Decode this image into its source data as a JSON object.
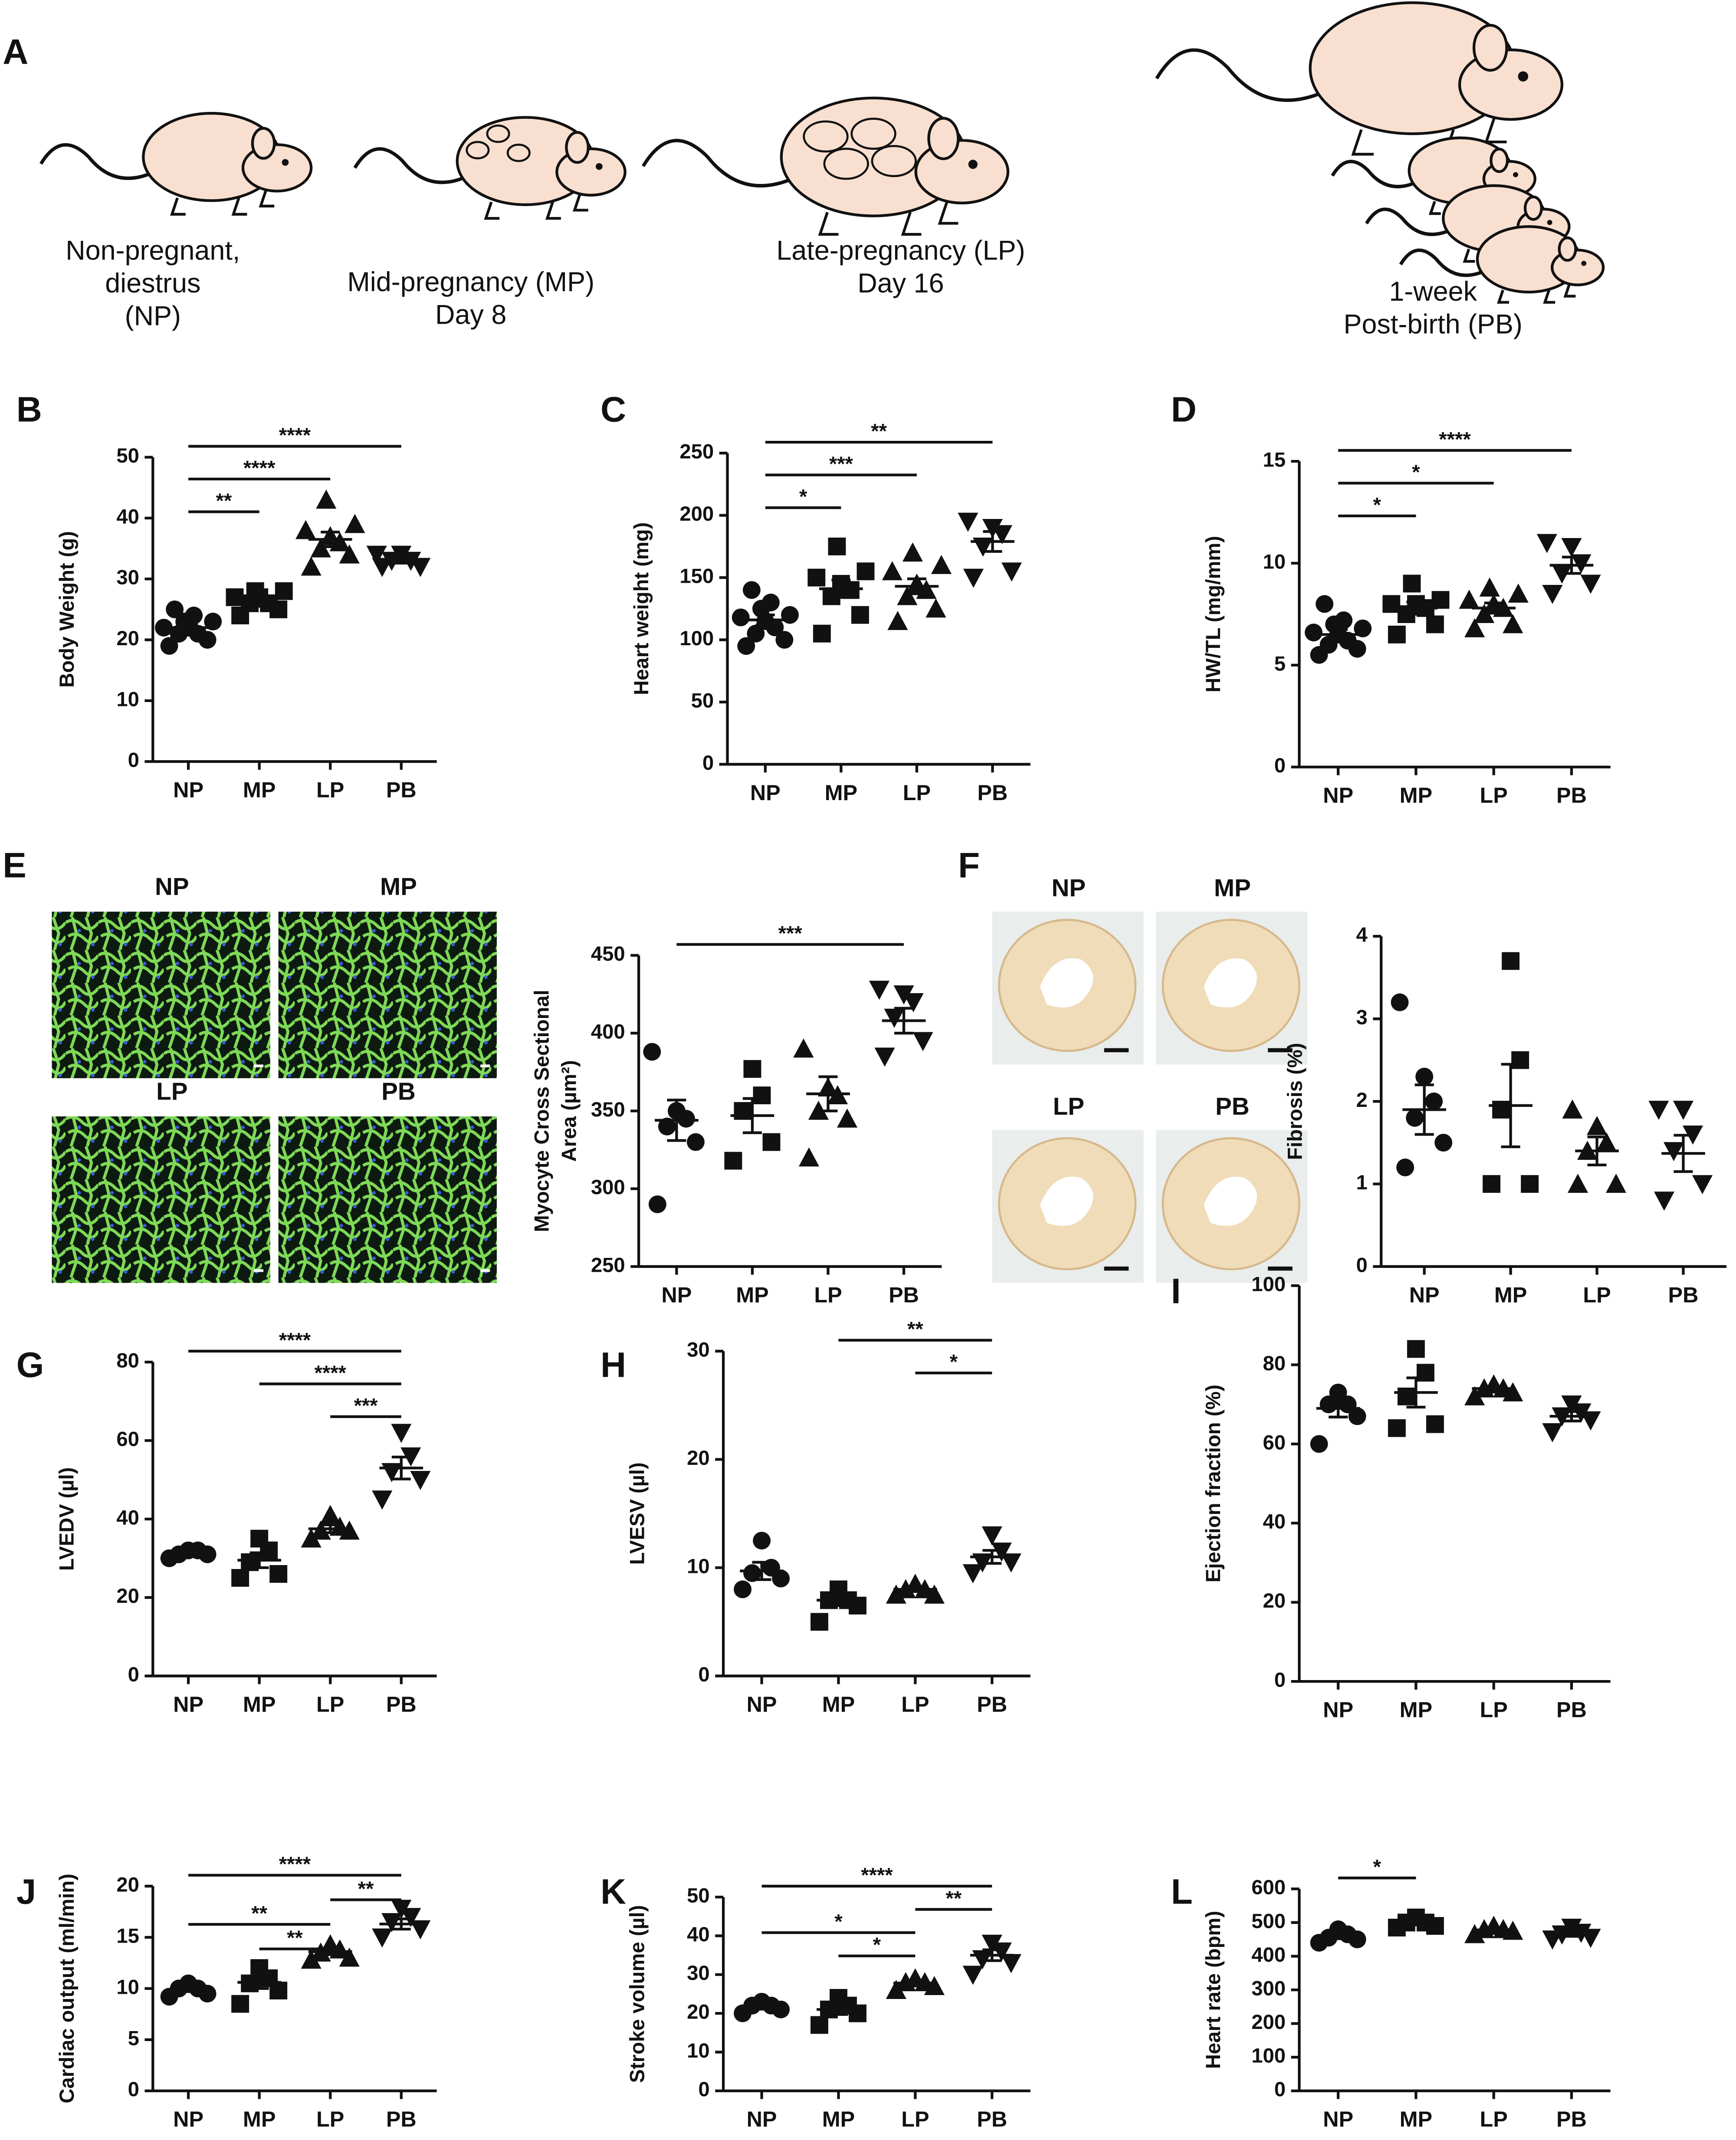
{
  "panel_a": {
    "panel": "A",
    "stages": [
      {
        "lines": [
          "Non-pregnant,",
          "diestrus",
          "(NP)"
        ]
      },
      {
        "lines": [
          "Mid-pregnancy (MP)",
          "Day 8"
        ]
      },
      {
        "lines": [
          "Late-pregnancy (LP)",
          "Day 16"
        ]
      },
      {
        "lines": [
          "1-week",
          "Post-birth (PB)"
        ]
      }
    ]
  },
  "panel_e_images": {
    "panel": "E",
    "labels": [
      "NP",
      "MP",
      "LP",
      "PB"
    ]
  },
  "panel_f_images": {
    "panel": "F",
    "labels": [
      "NP",
      "MP",
      "LP",
      "PB"
    ]
  },
  "chart_data": [
    {
      "type": "dot",
      "panel": "B",
      "ylabel": "Body Weight (g)",
      "categories": [
        "NP",
        "MP",
        "LP",
        "PB"
      ],
      "markers": [
        "circle",
        "square",
        "triangle",
        "triangle-down"
      ],
      "color": "#111111",
      "points": [
        [
          19,
          20,
          21,
          21,
          22,
          22,
          23,
          23,
          24,
          25
        ],
        [
          24,
          25,
          26,
          26,
          27,
          27,
          28,
          28
        ],
        [
          32,
          34,
          35,
          36,
          37,
          38,
          39,
          43
        ],
        [
          32,
          32,
          33,
          33,
          34,
          34
        ]
      ],
      "means": [
        22,
        26,
        36.5,
        33
      ],
      "sems": [
        0.6,
        0.5,
        1.2,
        0.4
      ],
      "ylim": [
        0,
        50
      ],
      "yticks": [
        0,
        10,
        20,
        30,
        40,
        50
      ],
      "significance": [
        {
          "pair": [
            "NP",
            "PB"
          ],
          "label": "****"
        },
        {
          "pair": [
            "NP",
            "LP"
          ],
          "label": "****"
        },
        {
          "pair": [
            "NP",
            "MP"
          ],
          "label": "**"
        }
      ]
    },
    {
      "type": "dot",
      "panel": "C",
      "ylabel": "Heart weight (mg)",
      "categories": [
        "NP",
        "MP",
        "LP",
        "PB"
      ],
      "markers": [
        "circle",
        "square",
        "triangle",
        "triangle-down"
      ],
      "color": "#111111",
      "points": [
        [
          95,
          100,
          105,
          110,
          115,
          118,
          120,
          125,
          130,
          140
        ],
        [
          105,
          120,
          135,
          140,
          145,
          150,
          155,
          175
        ],
        [
          115,
          125,
          135,
          140,
          145,
          155,
          160,
          170
        ],
        [
          150,
          155,
          175,
          185,
          190,
          195
        ]
      ],
      "means": [
        116,
        141,
        143,
        179
      ],
      "sems": [
        4,
        7,
        6,
        8
      ],
      "ylim": [
        0,
        250
      ],
      "yticks": [
        0,
        50,
        100,
        150,
        200,
        250
      ],
      "significance": [
        {
          "pair": [
            "NP",
            "PB"
          ],
          "label": "**"
        },
        {
          "pair": [
            "NP",
            "LP"
          ],
          "label": "***"
        },
        {
          "pair": [
            "NP",
            "MP"
          ],
          "label": "*"
        }
      ]
    },
    {
      "type": "dot",
      "panel": "D",
      "ylabel": "HW/TL (mg/mm)",
      "categories": [
        "NP",
        "MP",
        "LP",
        "PB"
      ],
      "markers": [
        "circle",
        "square",
        "triangle",
        "triangle-down"
      ],
      "color": "#111111",
      "points": [
        [
          5.5,
          5.8,
          6,
          6.2,
          6.5,
          6.6,
          6.8,
          7,
          7.2,
          8
        ],
        [
          6.5,
          7,
          7.5,
          7.8,
          8,
          8,
          8.2,
          9
        ],
        [
          6.8,
          7,
          7.5,
          7.8,
          8,
          8.2,
          8.5,
          8.8
        ],
        [
          8.5,
          9,
          9.5,
          10,
          10.8,
          11
        ]
      ],
      "means": [
        6.5,
        7.8,
        7.8,
        9.9
      ],
      "sems": [
        0.25,
        0.3,
        0.25,
        0.4
      ],
      "ylim": [
        0,
        15
      ],
      "yticks": [
        0,
        5,
        10,
        15
      ],
      "significance": [
        {
          "pair": [
            "NP",
            "PB"
          ],
          "label": "****"
        },
        {
          "pair": [
            "NP",
            "LP"
          ],
          "label": "*"
        },
        {
          "pair": [
            "NP",
            "MP"
          ],
          "label": "*"
        }
      ]
    },
    {
      "type": "dot",
      "ylabel": [
        "Myocyte Cross Sectional",
        "Area (µm²)"
      ],
      "categories": [
        "NP",
        "MP",
        "LP",
        "PB"
      ],
      "markers": [
        "circle",
        "square",
        "triangle",
        "triangle-down"
      ],
      "color": "#111111",
      "points": [
        [
          290,
          330,
          340,
          345,
          350,
          388
        ],
        [
          318,
          330,
          350,
          360,
          377
        ],
        [
          320,
          345,
          350,
          360,
          365,
          390
        ],
        [
          385,
          395,
          410,
          420,
          425,
          428
        ]
      ],
      "means": [
        344,
        347,
        361,
        408
      ],
      "sems": [
        13,
        11,
        11,
        8
      ],
      "ylim": [
        250,
        450
      ],
      "yticks": [
        250,
        300,
        350,
        400,
        450
      ],
      "significance": [
        {
          "pair": [
            "NP",
            "PB"
          ],
          "label": "***"
        }
      ]
    },
    {
      "type": "dot",
      "ylabel": "Fibrosis (%)",
      "categories": [
        "NP",
        "MP",
        "LP",
        "PB"
      ],
      "markers": [
        "circle",
        "square",
        "triangle",
        "triangle-down"
      ],
      "color": "#111111",
      "points": [
        [
          1.2,
          1.5,
          1.8,
          2,
          2.3,
          3.2
        ],
        [
          1,
          1,
          1.9,
          2.5,
          3.7
        ],
        [
          1,
          1,
          1.4,
          1.5,
          1.7,
          1.9
        ],
        [
          0.8,
          1,
          1.4,
          1.6,
          1.9,
          1.9
        ]
      ],
      "means": [
        1.9,
        1.95,
        1.4,
        1.37
      ],
      "sems": [
        0.3,
        0.5,
        0.17,
        0.22
      ],
      "ylim": [
        0,
        4
      ],
      "yticks": [
        0,
        1,
        2,
        3,
        4
      ],
      "significance": []
    },
    {
      "type": "dot",
      "panel": "G",
      "ylabel": "LVEDV  (µl)",
      "categories": [
        "NP",
        "MP",
        "LP",
        "PB"
      ],
      "markers": [
        "circle",
        "square",
        "triangle",
        "triangle-down"
      ],
      "color": "#111111",
      "points": [
        [
          30,
          31,
          31,
          32,
          32
        ],
        [
          25,
          26,
          29,
          32,
          35
        ],
        [
          35,
          37,
          37,
          38,
          41
        ],
        [
          45,
          50,
          52,
          56,
          62
        ]
      ],
      "means": [
        31,
        29.5,
        37.5,
        53
      ],
      "sems": [
        0.4,
        1.9,
        1,
        2.8
      ],
      "ylim": [
        0,
        80
      ],
      "yticks": [
        0,
        20,
        40,
        60,
        80
      ],
      "significance": [
        {
          "pair": [
            "NP",
            "PB"
          ],
          "label": "****"
        },
        {
          "pair": [
            "MP",
            "PB"
          ],
          "label": "****"
        },
        {
          "pair": [
            "LP",
            "PB"
          ],
          "label": "***"
        }
      ]
    },
    {
      "type": "dot",
      "panel": "H",
      "ylabel": "LVESV (µl)",
      "categories": [
        "NP",
        "MP",
        "LP",
        "PB"
      ],
      "markers": [
        "circle",
        "square",
        "triangle",
        "triangle-down"
      ],
      "color": "#111111",
      "points": [
        [
          8,
          9,
          9.5,
          10,
          12.5
        ],
        [
          5,
          6.5,
          7,
          7,
          8
        ],
        [
          7.5,
          7.5,
          8,
          8,
          8.5
        ],
        [
          9.5,
          10.5,
          10.5,
          11.5,
          13
        ]
      ],
      "means": [
        9.7,
        7,
        8,
        11
      ],
      "sems": [
        0.8,
        0.5,
        0.2,
        0.6
      ],
      "ylim": [
        0,
        30
      ],
      "yticks": [
        0,
        10,
        20,
        30
      ],
      "significance": [
        {
          "pair": [
            "MP",
            "PB"
          ],
          "label": "**"
        },
        {
          "pair": [
            "LP",
            "PB"
          ],
          "label": "*"
        }
      ]
    },
    {
      "type": "dot",
      "panel": "I",
      "ylabel": "Ejection fraction (%)",
      "categories": [
        "NP",
        "MP",
        "LP",
        "PB"
      ],
      "markers": [
        "circle",
        "square",
        "triangle",
        "triangle-down"
      ],
      "color": "#111111",
      "points": [
        [
          60,
          67,
          70,
          70,
          73
        ],
        [
          64,
          65,
          72,
          78,
          84
        ],
        [
          72,
          73,
          74,
          74,
          75
        ],
        [
          63,
          66,
          67,
          68,
          70
        ]
      ],
      "means": [
        69,
        73,
        74,
        67
      ],
      "sems": [
        2.2,
        3.7,
        0.5,
        1.2
      ],
      "ylim": [
        0,
        100
      ],
      "yticks": [
        0,
        20,
        40,
        60,
        80,
        100
      ],
      "significance": []
    },
    {
      "type": "dot",
      "panel": "J",
      "ylabel": "Cardiac output (ml/min)",
      "categories": [
        "NP",
        "MP",
        "LP",
        "PB"
      ],
      "markers": [
        "circle",
        "square",
        "triangle",
        "triangle-down"
      ],
      "color": "#111111",
      "points": [
        [
          9.2,
          9.5,
          10,
          10,
          10.5
        ],
        [
          8.5,
          9.8,
          10.5,
          11,
          12
        ],
        [
          12.8,
          13,
          13.5,
          13.8,
          14.3
        ],
        [
          15,
          15.8,
          16.5,
          17,
          17.8
        ]
      ],
      "means": [
        9.9,
        10.6,
        13.6,
        16.3
      ],
      "sems": [
        0.2,
        0.6,
        0.3,
        0.5
      ],
      "ylim": [
        0,
        20
      ],
      "yticks": [
        0,
        5,
        10,
        15,
        20
      ],
      "significance": [
        {
          "pair": [
            "NP",
            "PB"
          ],
          "label": "****"
        },
        {
          "pair": [
            "LP",
            "PB"
          ],
          "label": "**"
        },
        {
          "pair": [
            "NP",
            "LP"
          ],
          "label": "**"
        },
        {
          "pair": [
            "MP",
            "LP"
          ],
          "label": "**"
        }
      ]
    },
    {
      "type": "dot",
      "panel": "K",
      "ylabel": "Stroke volume (µl)",
      "categories": [
        "NP",
        "MP",
        "LP",
        "PB"
      ],
      "markers": [
        "circle",
        "square",
        "triangle",
        "triangle-down"
      ],
      "color": "#111111",
      "points": [
        [
          20,
          21,
          22,
          22,
          23
        ],
        [
          17,
          20,
          21,
          22,
          24
        ],
        [
          26,
          27,
          28,
          28,
          29
        ],
        [
          30,
          33,
          34,
          36,
          38
        ]
      ],
      "means": [
        21.8,
        21,
        27.8,
        35
      ],
      "sems": [
        0.6,
        1.3,
        0.6,
        1.4
      ],
      "ylim": [
        0,
        50
      ],
      "yticks": [
        0,
        10,
        20,
        30,
        40,
        50
      ],
      "significance": [
        {
          "pair": [
            "NP",
            "PB"
          ],
          "label": "****"
        },
        {
          "pair": [
            "LP",
            "PB"
          ],
          "label": "**"
        },
        {
          "pair": [
            "NP",
            "LP"
          ],
          "label": "*"
        },
        {
          "pair": [
            "MP",
            "LP"
          ],
          "label": "*"
        }
      ]
    },
    {
      "type": "dot",
      "panel": "L",
      "ylabel": "Heart rate (bpm)",
      "categories": [
        "NP",
        "MP",
        "LP",
        "PB"
      ],
      "markers": [
        "circle",
        "square",
        "triangle",
        "triangle-down"
      ],
      "color": "#111111",
      "points": [
        [
          440,
          450,
          455,
          465,
          480
        ],
        [
          485,
          490,
          500,
          500,
          515
        ],
        [
          465,
          475,
          480,
          480,
          490
        ],
        [
          450,
          455,
          465,
          470,
          485
        ]
      ],
      "means": [
        459,
        498,
        478,
        465
      ],
      "sems": [
        7,
        5,
        4,
        6
      ],
      "ylim": [
        0,
        600
      ],
      "yticks": [
        0,
        100,
        200,
        300,
        400,
        500,
        600
      ],
      "significance": [
        {
          "pair": [
            "NP",
            "MP"
          ],
          "label": "*"
        }
      ]
    }
  ]
}
